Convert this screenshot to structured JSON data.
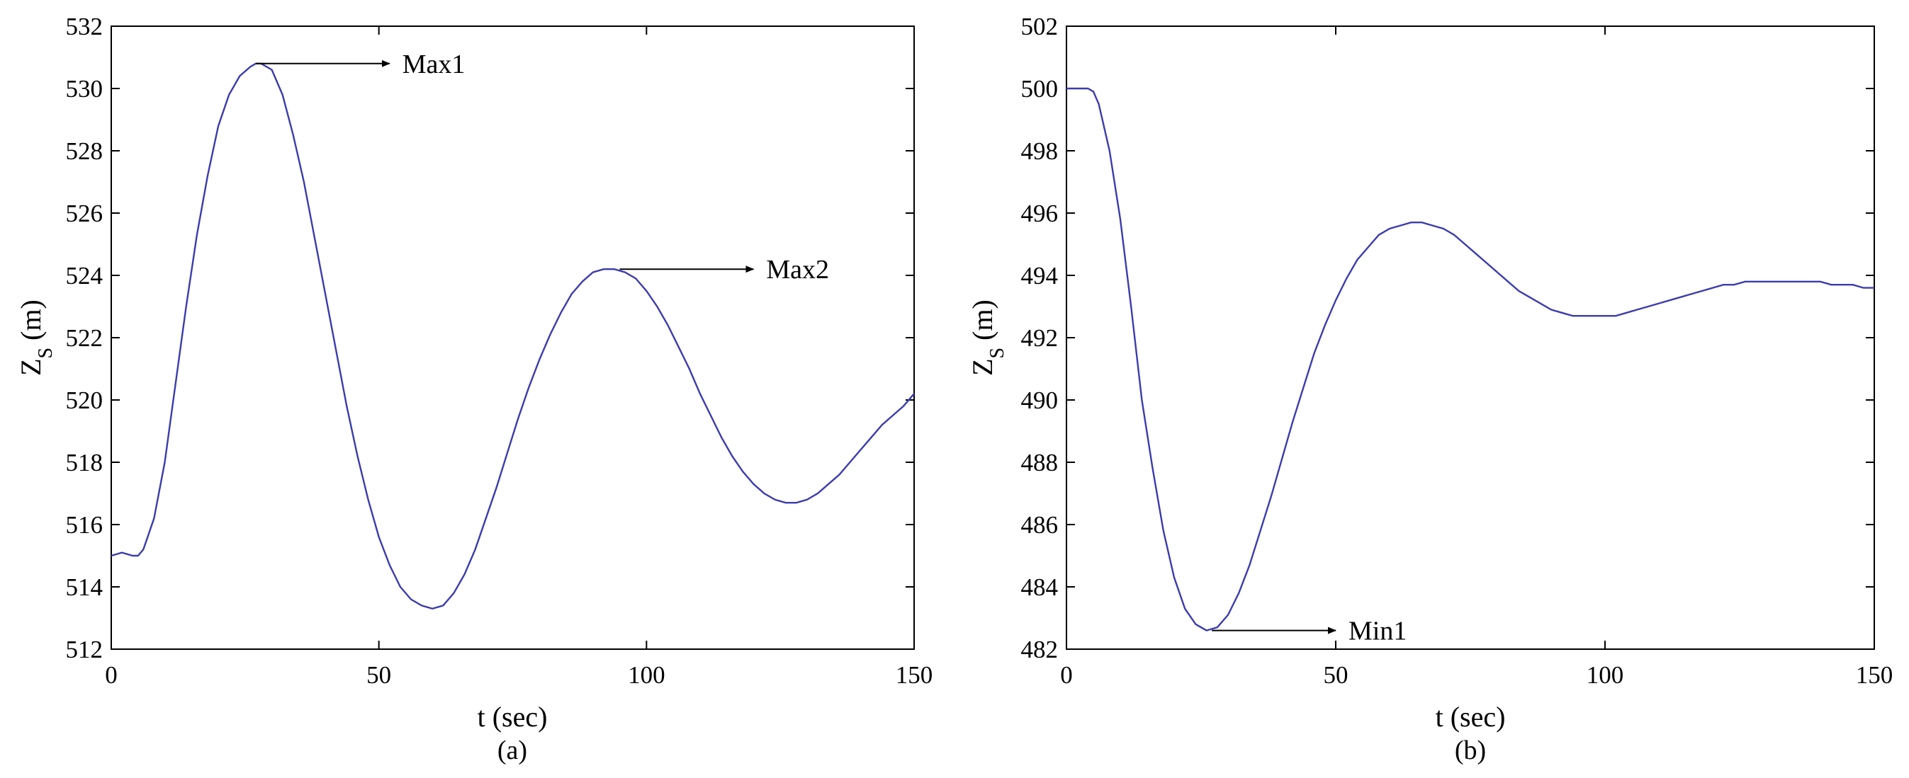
{
  "chart_data": [
    {
      "type": "line",
      "panel_label": "(a)",
      "xlabel": "t (sec)",
      "ylabel_main": "Z",
      "ylabel_sub": "S",
      "ylabel_tail": " (m)",
      "xlim": [
        0,
        150
      ],
      "ylim": [
        512,
        532
      ],
      "xticks": [
        0,
        50,
        100,
        150
      ],
      "yticks": [
        512,
        514,
        516,
        518,
        520,
        522,
        524,
        526,
        528,
        530,
        532
      ],
      "grid": false,
      "line_color": "#3b3bb0",
      "series": [
        {
          "x": [
            0,
            2,
            4,
            5,
            6,
            8,
            10,
            12,
            14,
            16,
            18,
            20,
            22,
            24,
            26,
            27,
            28,
            30,
            32,
            34,
            36,
            38,
            40,
            42,
            44,
            46,
            48,
            50,
            52,
            54,
            56,
            58,
            60,
            62,
            64,
            66,
            68,
            70,
            72,
            74,
            76,
            78,
            80,
            82,
            84,
            86,
            88,
            90,
            92,
            94,
            96,
            98,
            100,
            102,
            104,
            106,
            108,
            110,
            112,
            114,
            116,
            118,
            120,
            122,
            124,
            126,
            128,
            130,
            132,
            134,
            136,
            138,
            140,
            142,
            144,
            146,
            148,
            150
          ],
          "values": [
            515.0,
            515.1,
            515.0,
            515.0,
            515.2,
            516.2,
            518.0,
            520.5,
            523.0,
            525.3,
            527.2,
            528.8,
            529.8,
            530.4,
            530.7,
            530.8,
            530.8,
            530.6,
            529.8,
            528.5,
            527.0,
            525.2,
            523.4,
            521.6,
            519.8,
            518.2,
            516.8,
            515.6,
            514.7,
            514.0,
            513.6,
            513.4,
            513.3,
            513.4,
            513.8,
            514.4,
            515.2,
            516.2,
            517.2,
            518.3,
            519.4,
            520.4,
            521.3,
            522.1,
            522.8,
            523.4,
            523.8,
            524.1,
            524.2,
            524.2,
            524.1,
            523.9,
            523.5,
            523.0,
            522.4,
            521.7,
            521.0,
            520.2,
            519.5,
            518.8,
            518.2,
            517.7,
            517.3,
            517.0,
            516.8,
            516.7,
            516.7,
            516.8,
            517.0,
            517.3,
            517.6,
            518.0,
            518.4,
            518.8,
            519.2,
            519.5,
            519.8,
            520.2
          ]
        }
      ],
      "annotations": [
        {
          "text": "Max1",
          "from": [
            27,
            530.8
          ],
          "arrow_to": [
            52,
            530.8
          ]
        },
        {
          "text": "Max2",
          "from": [
            95,
            524.2
          ],
          "arrow_to": [
            120,
            524.2
          ]
        }
      ]
    },
    {
      "type": "line",
      "panel_label": "(b)",
      "xlabel": "t (sec)",
      "ylabel_main": "Z",
      "ylabel_sub": "S",
      "ylabel_tail": " (m)",
      "xlim": [
        0,
        150
      ],
      "ylim": [
        482,
        502
      ],
      "xticks": [
        0,
        50,
        100,
        150
      ],
      "yticks": [
        482,
        484,
        486,
        488,
        490,
        492,
        494,
        496,
        498,
        500,
        502
      ],
      "grid": false,
      "line_color": "#3b3bb0",
      "series": [
        {
          "x": [
            0,
            2,
            4,
            5,
            6,
            8,
            10,
            12,
            14,
            16,
            18,
            20,
            22,
            24,
            26,
            28,
            30,
            32,
            34,
            36,
            38,
            40,
            42,
            44,
            46,
            48,
            50,
            52,
            54,
            56,
            58,
            60,
            62,
            64,
            66,
            68,
            70,
            72,
            74,
            76,
            78,
            80,
            82,
            84,
            86,
            88,
            90,
            92,
            94,
            96,
            98,
            100,
            102,
            104,
            106,
            108,
            110,
            112,
            114,
            116,
            118,
            120,
            122,
            124,
            126,
            128,
            130,
            132,
            134,
            136,
            138,
            140,
            142,
            144,
            146,
            148,
            150
          ],
          "values": [
            500.0,
            500.0,
            500.0,
            499.9,
            499.5,
            498.0,
            495.8,
            493.0,
            490.0,
            487.8,
            485.8,
            484.3,
            483.3,
            482.8,
            482.6,
            482.7,
            483.1,
            483.8,
            484.7,
            485.8,
            486.9,
            488.1,
            489.3,
            490.4,
            491.5,
            492.4,
            493.2,
            493.9,
            494.5,
            494.9,
            495.3,
            495.5,
            495.6,
            495.7,
            495.7,
            495.6,
            495.5,
            495.3,
            495.0,
            494.7,
            494.4,
            494.1,
            493.8,
            493.5,
            493.3,
            493.1,
            492.9,
            492.8,
            492.7,
            492.7,
            492.7,
            492.7,
            492.7,
            492.8,
            492.9,
            493.0,
            493.1,
            493.2,
            493.3,
            493.4,
            493.5,
            493.6,
            493.7,
            493.7,
            493.8,
            493.8,
            493.8,
            493.8,
            493.8,
            493.8,
            493.8,
            493.8,
            493.7,
            493.7,
            493.7,
            493.6,
            493.6
          ]
        }
      ],
      "annotations": [
        {
          "text": "Min1",
          "from": [
            27,
            482.6
          ],
          "arrow_to": [
            50,
            482.6
          ]
        }
      ]
    }
  ]
}
